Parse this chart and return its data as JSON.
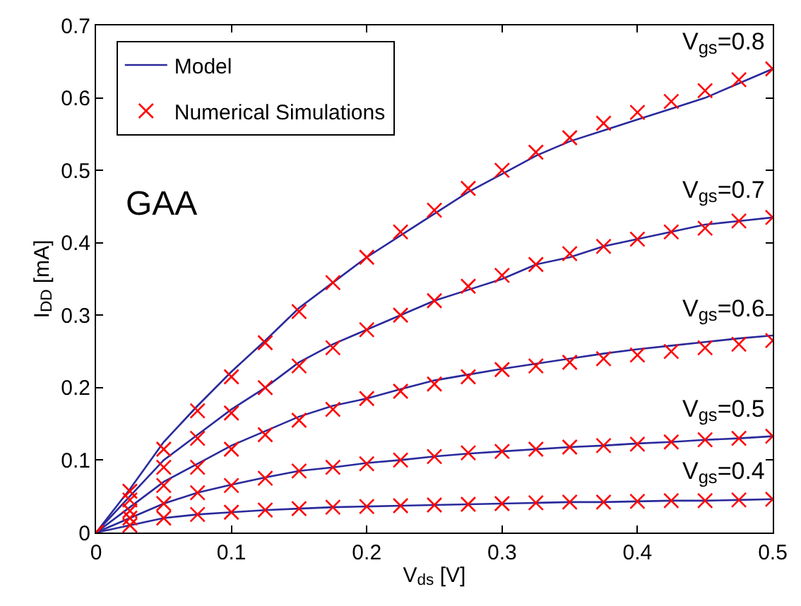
{
  "chart_data": {
    "type": "line",
    "xlabel": "V$_{ds}$ [V]",
    "ylabel": "I$_{DD}$ [mA]",
    "x": [
      0,
      0.025,
      0.05,
      0.075,
      0.1,
      0.125,
      0.15,
      0.175,
      0.2,
      0.225,
      0.25,
      0.275,
      0.3,
      0.325,
      0.35,
      0.375,
      0.4,
      0.425,
      0.45,
      0.475,
      0.5
    ],
    "xlim": [
      0,
      0.5
    ],
    "xticks": [
      0,
      0.1,
      0.2,
      0.3,
      0.4,
      0.5
    ],
    "ylim": [
      0,
      0.7
    ],
    "yticks": [
      0,
      0.1,
      0.2,
      0.3,
      0.4,
      0.5,
      0.6,
      0.7
    ],
    "legend": "top left",
    "series": [
      {
        "name": "Model",
        "type": "line",
        "color": "#2a2a9c",
        "line_style": "solid",
        "marker": "none",
        "values": [
          0,
          0.06,
          0.125,
          0.175,
          0.222,
          0.265,
          0.31,
          0.345,
          0.38,
          0.41,
          0.44,
          0.47,
          0.495,
          0.52,
          0.54,
          0.555,
          0.57,
          0.585,
          0.6,
          0.62,
          0.64
        ]
      },
      {
        "color": "#2a2a9c",
        "line_style": "solid",
        "marker": "none",
        "values": [
          0,
          0.05,
          0.1,
          0.135,
          0.17,
          0.2,
          0.235,
          0.26,
          0.28,
          0.3,
          0.32,
          0.335,
          0.35,
          0.37,
          0.38,
          0.395,
          0.405,
          0.415,
          0.425,
          0.43,
          0.435
        ]
      },
      {
        "color": "#2a2a9c",
        "line_style": "solid",
        "marker": "none",
        "values": [
          0,
          0.035,
          0.07,
          0.095,
          0.12,
          0.14,
          0.16,
          0.175,
          0.185,
          0.198,
          0.21,
          0.218,
          0.226,
          0.233,
          0.24,
          0.247,
          0.253,
          0.258,
          0.263,
          0.268,
          0.272
        ]
      },
      {
        "color": "#2a2a9c",
        "line_style": "solid",
        "marker": "none",
        "values": [
          0,
          0.02,
          0.04,
          0.055,
          0.066,
          0.076,
          0.085,
          0.09,
          0.096,
          0.1,
          0.105,
          0.109,
          0.112,
          0.115,
          0.118,
          0.12,
          0.123,
          0.125,
          0.128,
          0.13,
          0.133
        ]
      },
      {
        "color": "#2a2a9c",
        "line_style": "solid",
        "marker": "none",
        "values": [
          0,
          0.01,
          0.02,
          0.025,
          0.028,
          0.031,
          0.033,
          0.035,
          0.036,
          0.037,
          0.038,
          0.039,
          0.04,
          0.041,
          0.042,
          0.042,
          0.043,
          0.044,
          0.044,
          0.045,
          0.046
        ]
      },
      {
        "name": "Numerical Simulations",
        "type": "scatter",
        "color": "#ff0000",
        "marker": "cross",
        "values": [
          0,
          0.057,
          0.115,
          0.168,
          0.215,
          0.262,
          0.305,
          0.345,
          0.38,
          0.415,
          0.445,
          0.475,
          0.5,
          0.525,
          0.545,
          0.565,
          0.58,
          0.595,
          0.61,
          0.625,
          0.64
        ]
      },
      {
        "type": "scatter",
        "color": "#ff0000",
        "marker": "cross",
        "values": [
          0,
          0.045,
          0.09,
          0.13,
          0.165,
          0.2,
          0.23,
          0.255,
          0.28,
          0.3,
          0.32,
          0.34,
          0.355,
          0.37,
          0.385,
          0.395,
          0.405,
          0.415,
          0.42,
          0.43,
          0.435
        ]
      },
      {
        "type": "scatter",
        "color": "#ff0000",
        "marker": "cross",
        "values": [
          0,
          0.03,
          0.065,
          0.09,
          0.115,
          0.135,
          0.155,
          0.17,
          0.185,
          0.195,
          0.205,
          0.215,
          0.225,
          0.23,
          0.235,
          0.24,
          0.245,
          0.25,
          0.255,
          0.26,
          0.265
        ]
      },
      {
        "type": "scatter",
        "color": "#ff0000",
        "marker": "cross",
        "values": [
          0,
          0.02,
          0.04,
          0.055,
          0.065,
          0.075,
          0.085,
          0.09,
          0.095,
          0.1,
          0.105,
          0.11,
          0.112,
          0.115,
          0.118,
          0.12,
          0.122,
          0.125,
          0.128,
          0.13,
          0.133
        ]
      },
      {
        "type": "scatter",
        "color": "#ff0000",
        "marker": "cross",
        "values": [
          0,
          0.01,
          0.02,
          0.025,
          0.028,
          0.031,
          0.033,
          0.035,
          0.036,
          0.037,
          0.038,
          0.039,
          0.04,
          0.041,
          0.042,
          0.042,
          0.043,
          0.044,
          0.044,
          0.045,
          0.046
        ]
      }
    ],
    "annotations": [
      "GAA",
      "V$_{gs}$=0.8",
      "V$_{gs}$=0.7",
      "V$_{gs}$=0.6",
      "V$_{gs}$=0.5",
      "V$_{gs}$=0.4"
    ]
  }
}
